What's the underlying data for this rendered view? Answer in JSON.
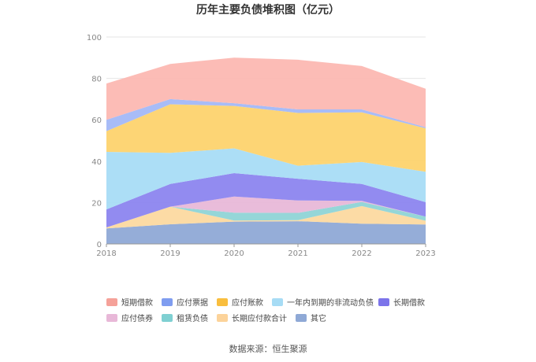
{
  "chart_data": {
    "type": "area",
    "stacked": true,
    "title": "历年主要负债堆积图（亿元）",
    "x": [
      "2018",
      "2019",
      "2020",
      "2021",
      "2022",
      "2023"
    ],
    "ylim": [
      0,
      100
    ],
    "yticks": [
      0,
      20,
      40,
      60,
      80,
      100
    ],
    "grid": true,
    "legend_position": "bottom",
    "series": [
      {
        "name": "其它",
        "color": "#8fa9d6",
        "values": [
          7.5,
          9.5,
          10.8,
          11.0,
          9.8,
          9.4
        ]
      },
      {
        "name": "长期应付款合计",
        "color": "#fcd9a0",
        "values": [
          0.5,
          8.5,
          0.5,
          0.5,
          8.5,
          1.8
        ]
      },
      {
        "name": "租赁负债",
        "color": "#8fd4d6",
        "values": [
          0,
          0,
          3.8,
          3.5,
          2.0,
          2.0
        ]
      },
      {
        "name": "应付债券",
        "color": "#e8b8d8",
        "values": [
          0,
          0,
          7.8,
          6.0,
          0.5,
          0
        ]
      },
      {
        "name": "长期借款",
        "color": "#8c85ef",
        "values": [
          8.7,
          11.0,
          11.3,
          10.5,
          8.2,
          7.0
        ]
      },
      {
        "name": "一年内到期的非流动负债",
        "color": "#a8dcf6",
        "values": [
          27.8,
          15.0,
          12.0,
          6.3,
          10.6,
          14.7
        ]
      },
      {
        "name": "应付账款",
        "color": "#fdd36e",
        "values": [
          10.0,
          23.5,
          20.5,
          25.5,
          24.0,
          21.0
        ]
      },
      {
        "name": "应付票据",
        "color": "#a3b8f7",
        "values": [
          5.5,
          2.5,
          1.3,
          1.7,
          1.4,
          0.5
        ]
      },
      {
        "name": "短期借款",
        "color": "#fcb8b2",
        "values": [
          17.5,
          17.0,
          22.0,
          24.0,
          21.0,
          18.6
        ]
      }
    ],
    "legend_order": [
      "短期借款",
      "应付票据",
      "应付账款",
      "一年内到期的非流动负债",
      "长期借款",
      "应付债券",
      "租赁负债",
      "长期应付款合计",
      "其它"
    ],
    "legend_colors": {
      "短期借款": "#f5a199",
      "应付票据": "#7f9df0",
      "应付账款": "#f9be3e",
      "一年内到期的非流动负债": "#a7dcf5",
      "长期借款": "#7c74ea",
      "应付债券": "#e8b8d8",
      "租赁负债": "#7fd0d2",
      "长期应付款合计": "#fcd39a",
      "其它": "#8fa9d6"
    }
  },
  "source_text": "数据来源：恒生聚源"
}
